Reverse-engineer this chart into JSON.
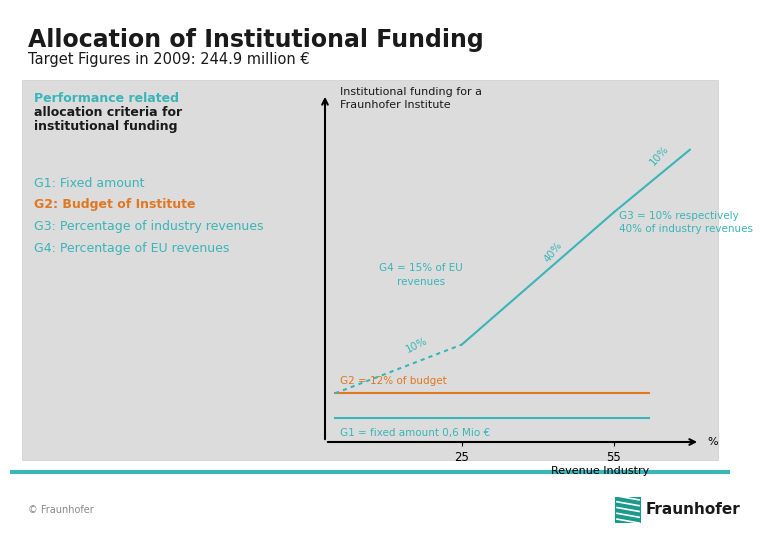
{
  "title": "Allocation of Institutional Funding",
  "subtitle": "Target Figures in 2009: 244.9 million €",
  "bg_color": "#dcdcdc",
  "page_bg": "#ffffff",
  "teal_color": "#3ab5b8",
  "orange_color": "#e07820",
  "black": "#000000",
  "gray_text": "#555555",
  "chart_title": "Institutional funding for a\nFraunhofer Institute",
  "annotation_g3": "G3 = 10% respectively\n40% of industry revenues",
  "annotation_g4": "G4 = 15% of EU\nrevenues",
  "annotation_g2": "G2 = 12% of budget",
  "annotation_g1": "G1 = fixed amount 0,6 Mio €",
  "label_10pct_lower": "10%",
  "label_10pct_upper": "10%",
  "label_40pct": "40%",
  "xtick_labels": [
    "25",
    "55"
  ],
  "xlabel_pct": "%",
  "xlabel_ri": "Revenue Industry",
  "copyright_text": "© Fraunhofer",
  "fraunhofer_text": "Fraunhofer",
  "bottom_line_color": "#3ab5b8",
  "perf_line1": "Performance related",
  "perf_line2": "allocation criteria for",
  "perf_line3": "institutional funding",
  "g1_label": "G1: Fixed amount",
  "g2_label": "G2: Budget of Institute",
  "g3_label": "G3: Percentage of industry revenues",
  "g4_label": "G4: Percentage of EU revenues"
}
